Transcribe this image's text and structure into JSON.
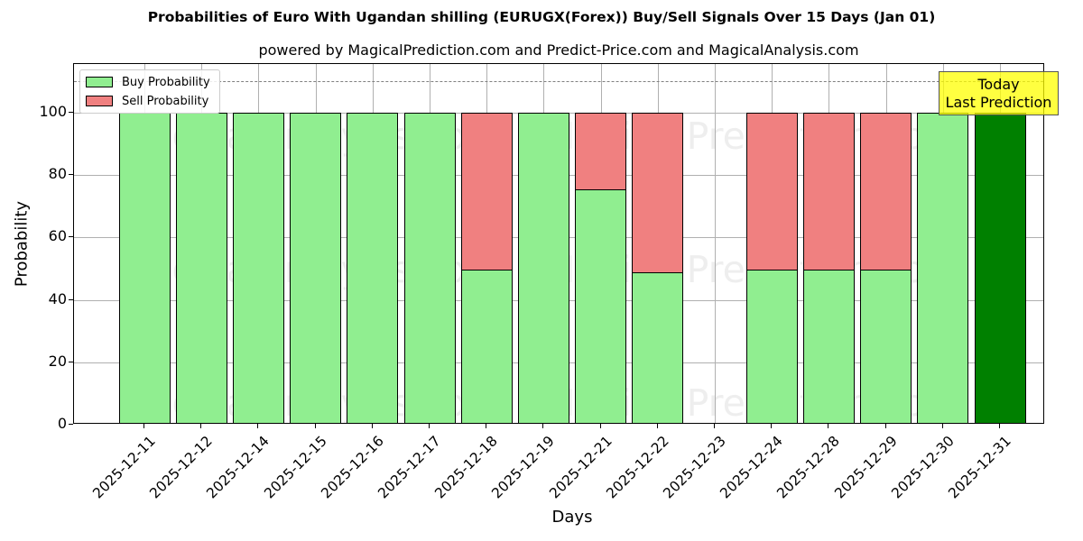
{
  "header": {
    "title": "Probabilities of Euro With Ugandan shilling (EURUGX(Forex)) Buy/Sell Signals Over 15 Days (Jan 01)",
    "subtitle": "powered by MagicalPrediction.com and Predict-Price.com and MagicalAnalysis.com"
  },
  "legend": {
    "buy_label": "Buy Probability",
    "sell_label": "Sell Probability"
  },
  "annotation": {
    "line1": "Today",
    "line2": "Last Prediction"
  },
  "watermarks": [
    "MagicalAnalysis.com",
    "Magica Prediction.com"
  ],
  "colors": {
    "buy": "#90ee90",
    "sell": "#f08080",
    "today": "#008000",
    "annotation_bg": "#ffff00"
  },
  "chart_data": {
    "type": "bar",
    "stacked": true,
    "title": "Probabilities of Euro With Ugandan shilling (EURUGX(Forex)) Buy/Sell Signals Over 15 Days (Jan 01)",
    "subtitle": "powered by MagicalPrediction.com and Predict-Price.com and MagicalAnalysis.com",
    "xlabel": "Days",
    "ylabel": "Probability",
    "ylim": [
      0,
      115
    ],
    "yticks": [
      0,
      20,
      40,
      60,
      80,
      100
    ],
    "reference_line": {
      "y": 110,
      "style": "dashed",
      "color": "#808080"
    },
    "grid": true,
    "legend_position": "upper left",
    "categories": [
      "2025-12-11",
      "2025-12-12",
      "2025-12-14",
      "2025-12-15",
      "2025-12-16",
      "2025-12-17",
      "2025-12-18",
      "2025-12-19",
      "2025-12-21",
      "2025-12-22",
      "2025-12-23",
      "2025-12-24",
      "2025-12-28",
      "2025-12-29",
      "2025-12-30",
      "2025-12-31"
    ],
    "series": [
      {
        "name": "Buy Probability",
        "color": "#90ee90",
        "values": [
          100,
          100,
          100,
          100,
          100,
          100,
          49.7,
          100,
          75.4,
          48.8,
          0,
          49.7,
          49.7,
          49.7,
          100,
          100
        ]
      },
      {
        "name": "Sell Probability",
        "color": "#f08080",
        "values": [
          0,
          0,
          0,
          0,
          0,
          0,
          50.3,
          0,
          24.6,
          51.2,
          0,
          50.3,
          50.3,
          50.3,
          0,
          0
        ]
      }
    ],
    "highlight": {
      "category": "2025-12-31",
      "color": "#008000",
      "annotation": "Today\nLast Prediction"
    }
  }
}
